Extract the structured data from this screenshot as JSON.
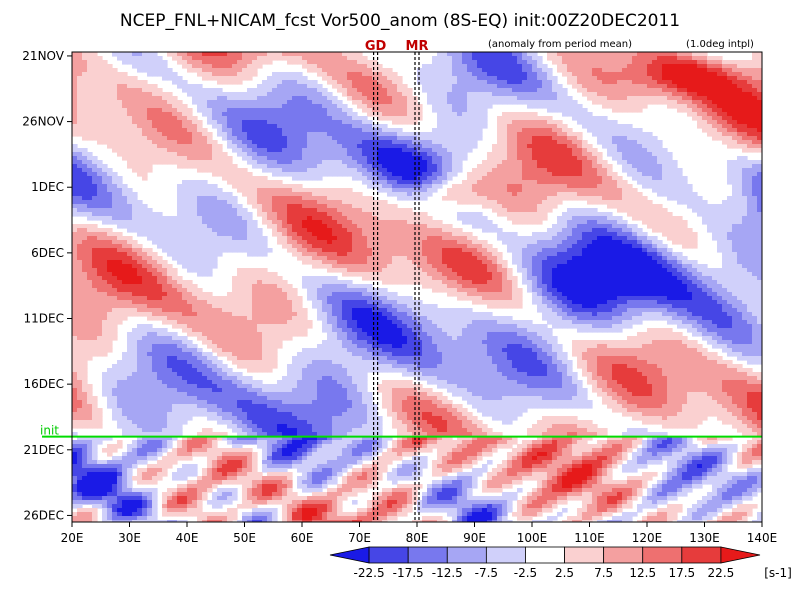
{
  "chart_data": {
    "type": "heatmap",
    "title": "NCEP_FNL+NICAM_fcst Vor500_anom (8S-EQ) init:00Z20DEC2011",
    "subtitle_left": "(anomaly from period mean)",
    "subtitle_right": "(1.0deg intpl)",
    "x_ticks": [
      {
        "value": 20,
        "label": "20E"
      },
      {
        "value": 30,
        "label": "30E"
      },
      {
        "value": 40,
        "label": "40E"
      },
      {
        "value": 50,
        "label": "50E"
      },
      {
        "value": 60,
        "label": "60E"
      },
      {
        "value": 70,
        "label": "70E"
      },
      {
        "value": 80,
        "label": "80E"
      },
      {
        "value": 90,
        "label": "90E"
      },
      {
        "value": 100,
        "label": "100E"
      },
      {
        "value": 110,
        "label": "110E"
      },
      {
        "value": 120,
        "label": "120E"
      },
      {
        "value": 130,
        "label": "130E"
      },
      {
        "value": 140,
        "label": "140E"
      }
    ],
    "xlim": [
      20,
      140
    ],
    "y_ticks": [
      {
        "value": 0,
        "label": "21NOV"
      },
      {
        "value": 5,
        "label": "26NOV"
      },
      {
        "value": 10,
        "label": "1DEC"
      },
      {
        "value": 15,
        "label": "6DEC"
      },
      {
        "value": 20,
        "label": "11DEC"
      },
      {
        "value": 25,
        "label": "16DEC"
      },
      {
        "value": 30,
        "label": "21DEC"
      },
      {
        "value": 35,
        "label": "26DEC"
      }
    ],
    "ylim_days": [
      -0.3,
      35.5
    ],
    "markers": [
      {
        "label": "GD",
        "lon": 72.8
      },
      {
        "label": "MR",
        "lon": 80
      }
    ],
    "init_line": {
      "label": "init",
      "day": 29
    },
    "colorbar": {
      "levels": [
        "-22.5",
        "-17.5",
        "-12.5",
        "-7.5",
        "-2.5",
        "2.5",
        "7.5",
        "12.5",
        "17.5",
        "22.5"
      ],
      "colors": [
        "#1a1ae6",
        "#4646e6",
        "#7878ee",
        "#a6a6f4",
        "#d0d0fa",
        "#ffffff",
        "#fad0d0",
        "#f4a0a0",
        "#ee7070",
        "#e63c3c",
        "#e61a1a"
      ],
      "unit": "[s-1]"
    },
    "grid": false
  }
}
